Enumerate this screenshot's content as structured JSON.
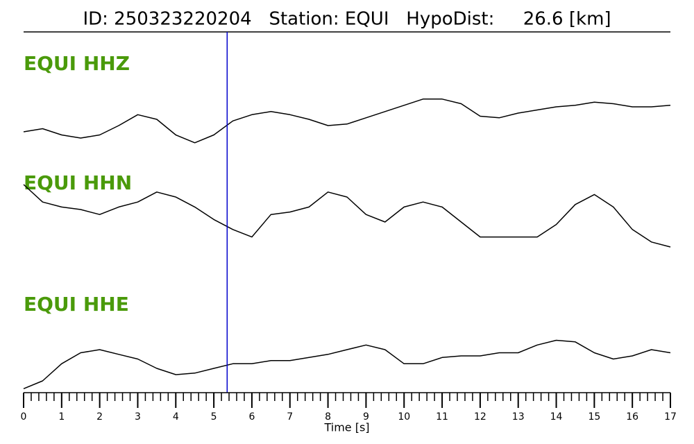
{
  "chart_data": {
    "type": "line",
    "title": "ID: 250323220204   Station: EQUI   HypoDist:     26.6 [km]",
    "x_label": "Time [s]",
    "x": [
      0,
      0.5,
      1,
      1.5,
      2,
      2.5,
      3,
      3.5,
      4,
      4.5,
      5,
      5.5,
      6,
      6.5,
      7,
      7.5,
      8,
      8.5,
      9,
      9.5,
      10,
      10.5,
      11,
      11.5,
      12,
      12.5,
      13,
      13.5,
      14,
      14.5,
      15,
      15.5,
      16,
      16.5,
      17
    ],
    "xlim": [
      0,
      17
    ],
    "xticks": [
      0,
      1,
      2,
      3,
      4,
      5,
      6,
      7,
      8,
      9,
      10,
      11,
      12,
      13,
      14,
      15,
      16,
      17
    ],
    "xminor_step": 0.2,
    "ylim": [
      -1,
      1
    ],
    "pick_time": 5.35,
    "pick_color": "#0000cc",
    "label_color": "#4a9a0a",
    "series": [
      {
        "name": "EQUI HHZ",
        "color": "#000000",
        "values": [
          -0.4,
          -0.3,
          -0.5,
          -0.6,
          -0.5,
          -0.2,
          0.15,
          0,
          -0.5,
          -0.75,
          -0.5,
          -0.05,
          0.15,
          0.25,
          0.15,
          0,
          -0.2,
          -0.15,
          0.05,
          0.25,
          0.45,
          0.65,
          0.65,
          0.5,
          0.1,
          0.05,
          0.2,
          0.3,
          0.4,
          0.45,
          0.55,
          0.5,
          0.4,
          0.4,
          0.45
        ]
      },
      {
        "name": "EQUI HHN",
        "color": "#000000",
        "values": [
          0.75,
          0.4,
          0.3,
          0.25,
          0.15,
          0.3,
          0.4,
          0.6,
          0.5,
          0.3,
          0.05,
          -0.15,
          -0.3,
          0.15,
          0.2,
          0.3,
          0.6,
          0.5,
          0.15,
          0,
          0.3,
          0.4,
          0.3,
          0,
          -0.3,
          -0.3,
          -0.3,
          -0.3,
          -0.05,
          0.35,
          0.55,
          0.3,
          -0.15,
          -0.4,
          -0.5
        ]
      },
      {
        "name": "EQUI HHE",
        "color": "#000000",
        "values": [
          -0.85,
          -0.6,
          -0.05,
          0.3,
          0.4,
          0.25,
          0.1,
          -0.2,
          -0.4,
          -0.35,
          -0.2,
          -0.05,
          -0.05,
          0.05,
          0.05,
          0.15,
          0.25,
          0.4,
          0.55,
          0.4,
          -0.05,
          -0.05,
          0.15,
          0.2,
          0.2,
          0.3,
          0.3,
          0.55,
          0.7,
          0.65,
          0.3,
          0.1,
          0.2,
          0.4,
          0.3
        ]
      }
    ]
  }
}
